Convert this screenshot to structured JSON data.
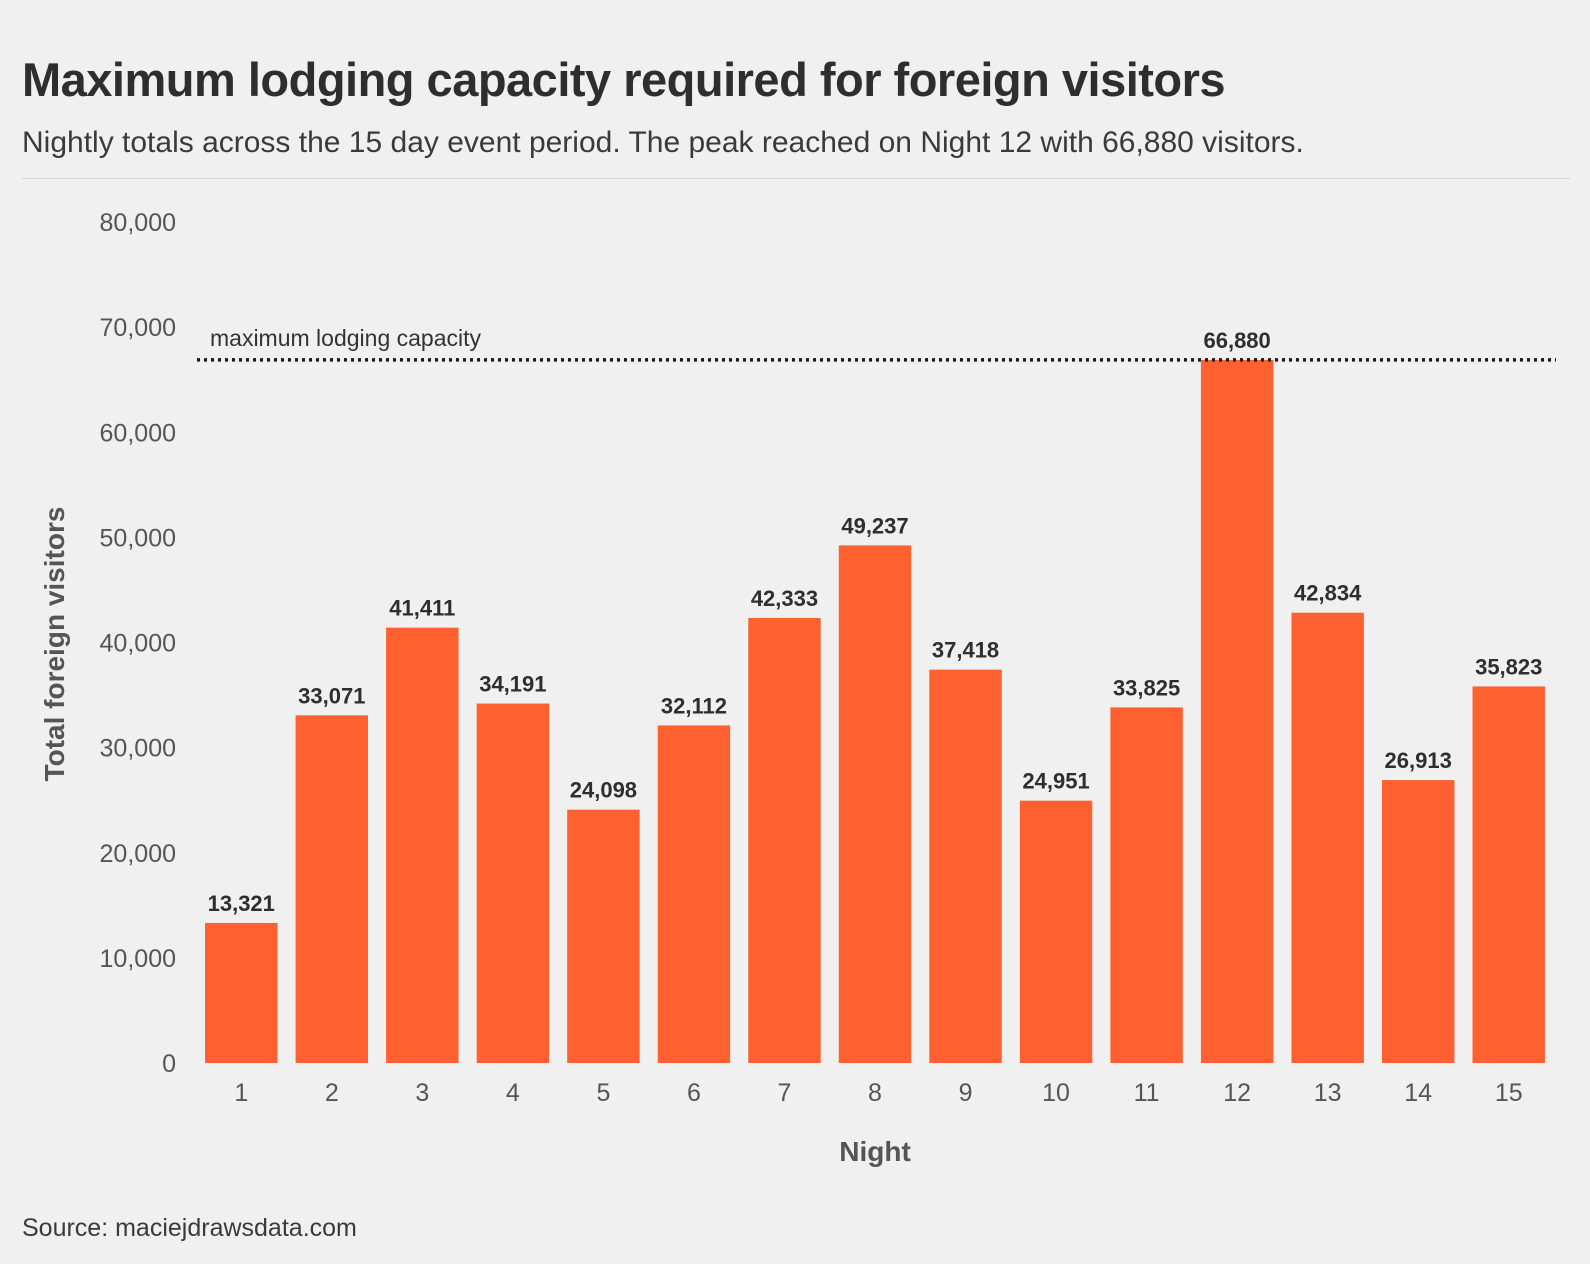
{
  "chart_data": {
    "type": "bar",
    "title": "Maximum lodging capacity required for foreign visitors",
    "subtitle": "Nightly totals across the 15 day event period. The peak reached on Night 12 with 66,880 visitors.",
    "xlabel": "Night",
    "ylabel": "Total foreign visitors",
    "categories": [
      "1",
      "2",
      "3",
      "4",
      "5",
      "6",
      "7",
      "8",
      "9",
      "10",
      "11",
      "12",
      "13",
      "14",
      "15"
    ],
    "values": [
      13321,
      33071,
      41411,
      34191,
      24098,
      32112,
      42333,
      49237,
      37418,
      24951,
      33825,
      66880,
      42834,
      26913,
      35823
    ],
    "value_labels": [
      "13,321",
      "33,071",
      "41,411",
      "34,191",
      "24,098",
      "32,112",
      "42,333",
      "49,237",
      "37,418",
      "24,951",
      "33,825",
      "66,880",
      "42,834",
      "26,913",
      "35,823"
    ],
    "ylim": [
      0,
      80000
    ],
    "y_ticks": [
      0,
      10000,
      20000,
      30000,
      40000,
      50000,
      60000,
      70000,
      80000
    ],
    "y_tick_labels": [
      "0",
      "10,000",
      "20,000",
      "30,000",
      "40,000",
      "50,000",
      "60,000",
      "70,000",
      "80,000"
    ],
    "reference_line": {
      "value": 66880,
      "label": "maximum lodging capacity",
      "style": "dotted"
    },
    "grid": false,
    "legend": "none",
    "bar_color": "#ff6030",
    "source": "Source: maciejdrawsdata.com"
  }
}
